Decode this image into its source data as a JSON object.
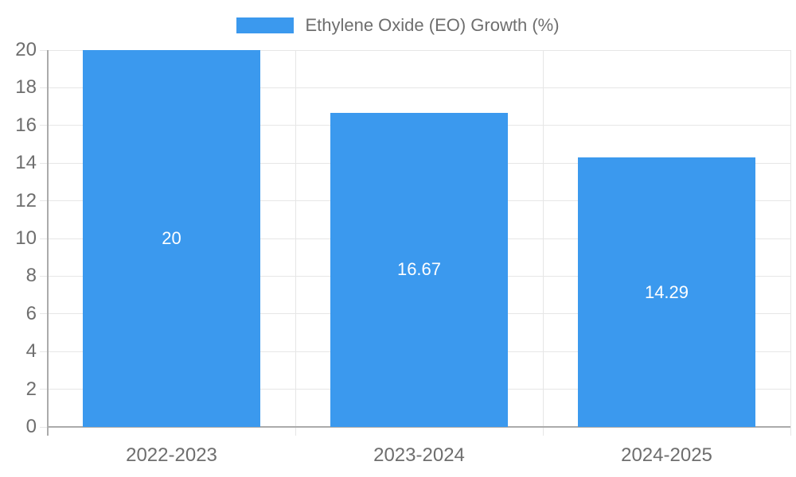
{
  "chart_data": {
    "type": "bar",
    "title": "",
    "legend": {
      "label": "Ethylene Oxide (EO) Growth (%)",
      "position": "top"
    },
    "categories": [
      "2022-2023",
      "2023-2024",
      "2024-2025"
    ],
    "values": [
      20,
      16.67,
      14.29
    ],
    "value_labels": [
      "20",
      "16.67",
      "14.29"
    ],
    "xlabel": "",
    "ylabel": "",
    "ylim": [
      0,
      20
    ],
    "yticks": [
      0,
      2,
      4,
      6,
      8,
      10,
      12,
      14,
      16,
      18,
      20
    ],
    "grid": true,
    "colors": {
      "bar": "#3B99EE",
      "grid": "#e6e6e6",
      "axis": "#ababab",
      "tick_label": "#6e6e6e",
      "value_label": "#ffffff",
      "background": "#ffffff"
    }
  }
}
